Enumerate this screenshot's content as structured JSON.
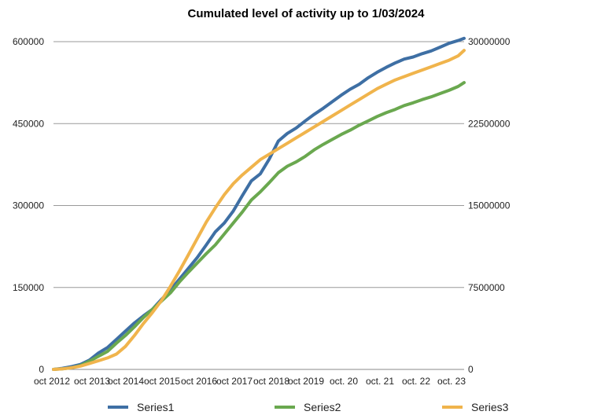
{
  "chart_data": {
    "type": "line",
    "title": "Cumulated level of activity up to 1/03/2024",
    "x_tick_labels": [
      "oct 2012",
      "oct 2013",
      "oct 2014",
      "oct 2015",
      "oct 2016",
      "oct 2017",
      "oct 2018",
      "oct 2019",
      "oct. 20",
      "oct. 21",
      "oct. 22",
      "oct. 23"
    ],
    "x_range": [
      0,
      137
    ],
    "ylim_left": [
      0,
      600000
    ],
    "ylim_right": [
      0,
      30000000
    ],
    "yticks_left": [
      "0",
      "150000",
      "300000",
      "450000",
      "600000"
    ],
    "yticks_right": [
      "0",
      "7500000",
      "15000000",
      "22500000",
      "30000000"
    ],
    "grid": true,
    "legend_position": "bottom",
    "series": [
      {
        "name": "Series1",
        "axis": "left",
        "color": "#3E6FA4",
        "points": [
          [
            0,
            0
          ],
          [
            3,
            2000
          ],
          [
            6,
            5000
          ],
          [
            9,
            9000
          ],
          [
            12,
            17000
          ],
          [
            15,
            30000
          ],
          [
            18,
            40000
          ],
          [
            21,
            55000
          ],
          [
            24,
            70000
          ],
          [
            27,
            85000
          ],
          [
            30,
            98000
          ],
          [
            33,
            110000
          ],
          [
            36,
            128000
          ],
          [
            39,
            145000
          ],
          [
            42,
            165000
          ],
          [
            45,
            185000
          ],
          [
            48,
            205000
          ],
          [
            51,
            228000
          ],
          [
            54,
            252000
          ],
          [
            57,
            268000
          ],
          [
            60,
            290000
          ],
          [
            63,
            318000
          ],
          [
            66,
            345000
          ],
          [
            69,
            358000
          ],
          [
            72,
            385000
          ],
          [
            75,
            418000
          ],
          [
            78,
            432000
          ],
          [
            81,
            442000
          ],
          [
            84,
            455000
          ],
          [
            87,
            467000
          ],
          [
            90,
            478000
          ],
          [
            93,
            490000
          ],
          [
            96,
            502000
          ],
          [
            99,
            513000
          ],
          [
            102,
            522000
          ],
          [
            105,
            534000
          ],
          [
            108,
            544000
          ],
          [
            111,
            553000
          ],
          [
            114,
            561000
          ],
          [
            117,
            568000
          ],
          [
            120,
            572000
          ],
          [
            123,
            578000
          ],
          [
            126,
            583000
          ],
          [
            129,
            590000
          ],
          [
            132,
            597000
          ],
          [
            135,
            602000
          ],
          [
            137,
            606000
          ]
        ]
      },
      {
        "name": "Series2",
        "axis": "left",
        "color": "#6AA84F",
        "points": [
          [
            0,
            0
          ],
          [
            3,
            1000
          ],
          [
            6,
            3000
          ],
          [
            9,
            7000
          ],
          [
            12,
            15000
          ],
          [
            15,
            24000
          ],
          [
            18,
            33000
          ],
          [
            21,
            48000
          ],
          [
            24,
            62000
          ],
          [
            27,
            78000
          ],
          [
            30,
            95000
          ],
          [
            33,
            110000
          ],
          [
            36,
            125000
          ],
          [
            39,
            140000
          ],
          [
            42,
            160000
          ],
          [
            45,
            178000
          ],
          [
            48,
            195000
          ],
          [
            51,
            212000
          ],
          [
            54,
            228000
          ],
          [
            57,
            248000
          ],
          [
            60,
            268000
          ],
          [
            63,
            288000
          ],
          [
            66,
            310000
          ],
          [
            69,
            325000
          ],
          [
            72,
            342000
          ],
          [
            75,
            360000
          ],
          [
            78,
            372000
          ],
          [
            81,
            380000
          ],
          [
            84,
            390000
          ],
          [
            87,
            402000
          ],
          [
            90,
            412000
          ],
          [
            93,
            421000
          ],
          [
            96,
            430000
          ],
          [
            99,
            438000
          ],
          [
            102,
            447000
          ],
          [
            105,
            455000
          ],
          [
            108,
            463000
          ],
          [
            111,
            470000
          ],
          [
            114,
            476000
          ],
          [
            117,
            483000
          ],
          [
            120,
            488000
          ],
          [
            123,
            494000
          ],
          [
            126,
            499000
          ],
          [
            129,
            505000
          ],
          [
            132,
            511000
          ],
          [
            135,
            518000
          ],
          [
            137,
            525000
          ]
        ]
      },
      {
        "name": "Series3",
        "axis": "right",
        "color": "#F0B44C",
        "points": [
          [
            0,
            0
          ],
          [
            3,
            50000
          ],
          [
            6,
            150000
          ],
          [
            9,
            300000
          ],
          [
            12,
            550000
          ],
          [
            15,
            800000
          ],
          [
            18,
            1050000
          ],
          [
            21,
            1400000
          ],
          [
            24,
            2100000
          ],
          [
            27,
            3100000
          ],
          [
            30,
            4200000
          ],
          [
            33,
            5200000
          ],
          [
            36,
            6300000
          ],
          [
            39,
            7600000
          ],
          [
            42,
            9000000
          ],
          [
            45,
            10500000
          ],
          [
            48,
            12000000
          ],
          [
            51,
            13500000
          ],
          [
            54,
            14800000
          ],
          [
            57,
            16000000
          ],
          [
            60,
            17000000
          ],
          [
            63,
            17800000
          ],
          [
            66,
            18500000
          ],
          [
            69,
            19200000
          ],
          [
            72,
            19700000
          ],
          [
            75,
            20200000
          ],
          [
            78,
            20700000
          ],
          [
            81,
            21200000
          ],
          [
            84,
            21700000
          ],
          [
            87,
            22200000
          ],
          [
            90,
            22700000
          ],
          [
            93,
            23200000
          ],
          [
            96,
            23700000
          ],
          [
            99,
            24200000
          ],
          [
            102,
            24700000
          ],
          [
            105,
            25200000
          ],
          [
            108,
            25700000
          ],
          [
            111,
            26100000
          ],
          [
            114,
            26500000
          ],
          [
            117,
            26800000
          ],
          [
            120,
            27100000
          ],
          [
            123,
            27400000
          ],
          [
            126,
            27700000
          ],
          [
            129,
            28000000
          ],
          [
            132,
            28300000
          ],
          [
            135,
            28700000
          ],
          [
            137,
            29200000
          ]
        ]
      }
    ]
  }
}
